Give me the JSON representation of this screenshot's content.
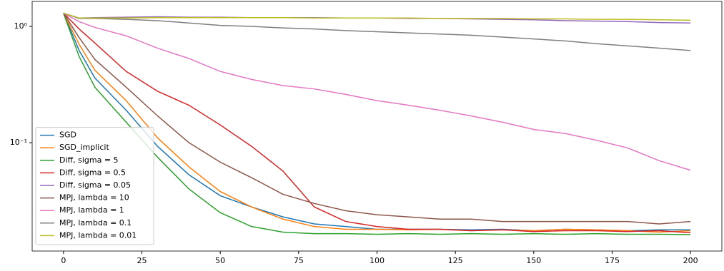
{
  "chart_data": {
    "type": "line",
    "x": [
      0,
      5,
      10,
      20,
      30,
      40,
      50,
      60,
      70,
      80,
      90,
      100,
      110,
      120,
      130,
      140,
      150,
      160,
      170,
      180,
      190,
      200
    ],
    "series": [
      {
        "name": "SGD",
        "color": "#1f77b4",
        "values": [
          1.3,
          0.62,
          0.36,
          0.19,
          0.093,
          0.053,
          0.035,
          0.028,
          0.023,
          0.02,
          0.019,
          0.018,
          0.018,
          0.018,
          0.0178,
          0.018,
          0.0175,
          0.018,
          0.0178,
          0.0175,
          0.0178,
          0.0178
        ]
      },
      {
        "name": "SGD_implicit",
        "color": "#ff7f0e",
        "values": [
          1.3,
          0.7,
          0.42,
          0.23,
          0.11,
          0.062,
          0.038,
          0.028,
          0.022,
          0.019,
          0.018,
          0.018,
          0.0178,
          0.018,
          0.0175,
          0.0178,
          0.0175,
          0.018,
          0.0178,
          0.0175,
          0.017,
          0.0175
        ]
      },
      {
        "name": "Diff, sigma = 5",
        "color": "#2ca02c",
        "values": [
          1.3,
          0.55,
          0.3,
          0.15,
          0.075,
          0.04,
          0.025,
          0.019,
          0.017,
          0.0165,
          0.0165,
          0.0163,
          0.0165,
          0.0163,
          0.0165,
          0.0163,
          0.0165,
          0.0163,
          0.0165,
          0.0163,
          0.0163,
          0.0162
        ]
      },
      {
        "name": "Diff, sigma = 0.5",
        "color": "#d62728",
        "values": [
          1.3,
          0.95,
          0.72,
          0.41,
          0.277,
          0.21,
          0.142,
          0.093,
          0.057,
          0.028,
          0.021,
          0.019,
          0.018,
          0.018,
          0.0175,
          0.0178,
          0.0172,
          0.0175,
          0.0175,
          0.0172,
          0.0175,
          0.0168
        ]
      },
      {
        "name": "Diff, sigma = 0.05",
        "color": "#9467bd",
        "values": [
          1.3,
          1.18,
          1.19,
          1.2,
          1.21,
          1.2,
          1.2,
          1.19,
          1.19,
          1.19,
          1.18,
          1.18,
          1.17,
          1.17,
          1.16,
          1.15,
          1.14,
          1.12,
          1.11,
          1.1,
          1.08,
          1.07
        ]
      },
      {
        "name": "MPJ, lambda = 10",
        "color": "#8c564b",
        "values": [
          1.3,
          0.8,
          0.52,
          0.3,
          0.17,
          0.1,
          0.068,
          0.05,
          0.036,
          0.03,
          0.026,
          0.024,
          0.023,
          0.022,
          0.022,
          0.021,
          0.021,
          0.021,
          0.021,
          0.021,
          0.02,
          0.021
        ]
      },
      {
        "name": "MPJ, lambda = 1",
        "color": "#e377c2",
        "values": [
          1.3,
          1.1,
          0.98,
          0.83,
          0.65,
          0.53,
          0.41,
          0.35,
          0.31,
          0.29,
          0.26,
          0.23,
          0.21,
          0.19,
          0.17,
          0.15,
          0.13,
          0.12,
          0.105,
          0.09,
          0.07,
          0.058
        ]
      },
      {
        "name": "MPJ, lambda = 0.1",
        "color": "#7f7f7f",
        "values": [
          1.3,
          1.17,
          1.17,
          1.15,
          1.12,
          1.07,
          1.02,
          1.0,
          0.97,
          0.95,
          0.92,
          0.9,
          0.88,
          0.86,
          0.84,
          0.81,
          0.78,
          0.75,
          0.71,
          0.68,
          0.65,
          0.62
        ]
      },
      {
        "name": "MPJ, lambda = 0.01",
        "color": "#bcbd22",
        "values": [
          1.3,
          1.18,
          1.18,
          1.18,
          1.19,
          1.19,
          1.19,
          1.19,
          1.19,
          1.18,
          1.18,
          1.18,
          1.18,
          1.17,
          1.17,
          1.17,
          1.16,
          1.16,
          1.15,
          1.15,
          1.14,
          1.13
        ]
      }
    ],
    "xlim": [
      -10,
      210
    ],
    "xticks": [
      0,
      25,
      50,
      75,
      100,
      125,
      150,
      175,
      200
    ],
    "ylim": [
      0.0117,
      1.64
    ],
    "ylog": true,
    "yticks": [
      {
        "value": 0.1,
        "label": "10⁻¹"
      },
      {
        "value": 1,
        "label": "10⁰"
      }
    ],
    "legend": "lower left"
  }
}
